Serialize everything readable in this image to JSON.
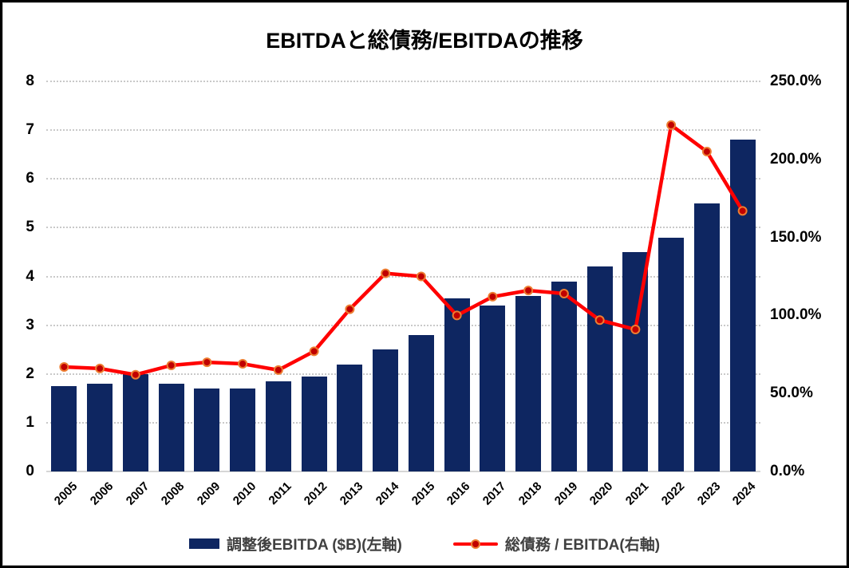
{
  "title": "EBITDAと総債務/EBITDAの推移",
  "legend": {
    "bar_label": "調整後EBITDA ($B)(左軸)",
    "line_label": "総債務 / EBITDA(右軸)"
  },
  "colors": {
    "bar": "#0e2661",
    "line": "#ff0000",
    "marker_fill": "#c00000",
    "marker_ring": "#ed7d31",
    "gridline": "#c9c9c9",
    "axis_line": "#d6d6d6",
    "axis_text": "#000000",
    "legend_text": "#404040"
  },
  "chart_data": {
    "type": "bar",
    "subtype": "bar-and-line-dual-axis",
    "title": "EBITDAと総債務/EBITDAの推移",
    "categories": [
      "2005",
      "2006",
      "2007",
      "2008",
      "2009",
      "2010",
      "2011",
      "2012",
      "2013",
      "2014",
      "2015",
      "2016",
      "2017",
      "2018",
      "2019",
      "2020",
      "2021",
      "2022",
      "2023",
      "2024"
    ],
    "series": [
      {
        "name": "調整後EBITDA ($B)(左軸)",
        "type": "bar",
        "axis": "left",
        "values": [
          1.75,
          1.8,
          2.0,
          1.8,
          1.7,
          1.7,
          1.85,
          1.95,
          2.2,
          2.5,
          2.8,
          3.55,
          3.4,
          3.6,
          3.9,
          4.2,
          4.5,
          4.8,
          5.5,
          6.8
        ]
      },
      {
        "name": "総債務 / EBITDA(右軸)",
        "type": "line",
        "axis": "right",
        "values_percent": [
          67,
          66,
          62,
          68,
          70,
          69,
          65,
          77,
          104,
          127,
          125,
          100,
          112,
          116,
          114,
          97,
          91,
          222,
          205,
          167
        ]
      }
    ],
    "left_axis": {
      "min": 0,
      "max": 8,
      "ticks": [
        0,
        1,
        2,
        3,
        4,
        5,
        6,
        7,
        8
      ]
    },
    "right_axis": {
      "min": 0,
      "max": 250,
      "tick_labels": [
        "0.0%",
        "50.0%",
        "100.0%",
        "150.0%",
        "200.0%",
        "250.0%"
      ]
    },
    "grid": true,
    "legend_position": "bottom"
  }
}
